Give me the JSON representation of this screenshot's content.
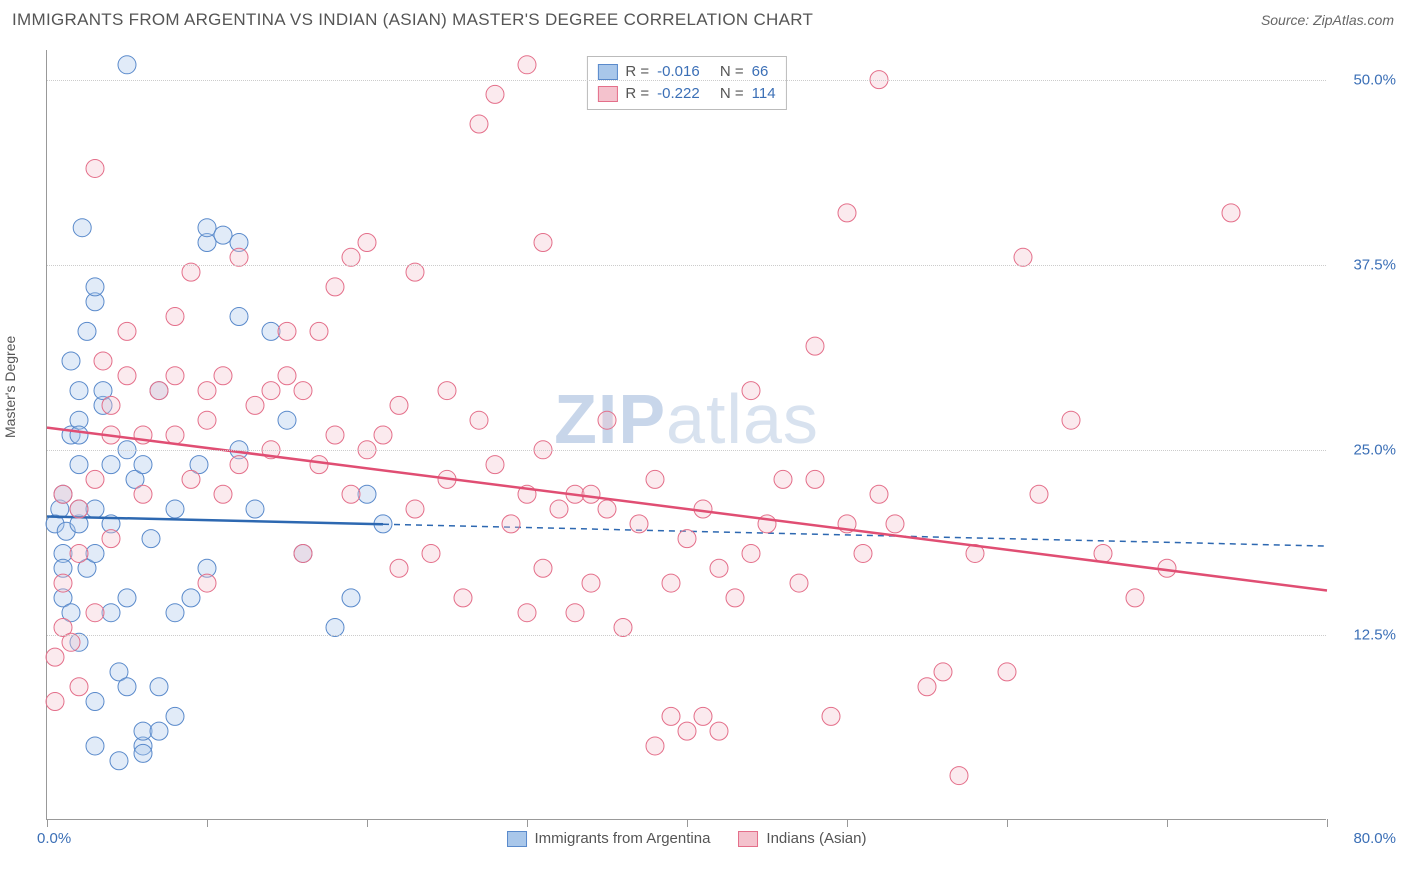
{
  "title": "IMMIGRANTS FROM ARGENTINA VS INDIAN (ASIAN) MASTER'S DEGREE CORRELATION CHART",
  "source_label": "Source:",
  "source_value": "ZipAtlas.com",
  "y_axis_label": "Master's Degree",
  "watermark_prefix": "ZIP",
  "watermark_suffix": "atlas",
  "chart": {
    "type": "scatter",
    "xlim": [
      0,
      80
    ],
    "ylim": [
      0,
      52
    ],
    "x_tick_step": 10,
    "y_ticks": [
      12.5,
      25.0,
      37.5,
      50.0
    ],
    "y_tick_labels": [
      "12.5%",
      "25.0%",
      "37.5%",
      "50.0%"
    ],
    "x_start_label": "0.0%",
    "x_end_label": "80.0%",
    "background_color": "#ffffff",
    "grid_color": "#cccccc",
    "axis_color": "#999999",
    "point_opacity": 0.35,
    "point_radius": 9
  },
  "series": [
    {
      "name": "Immigrants from Argentina",
      "fill_color": "#a9c7ea",
      "stroke_color": "#5a8acb",
      "line_color": "#2d68b1",
      "R": "-0.016",
      "N": "66",
      "trend": {
        "y_at_x0": 20.5,
        "y_at_xmax": 18.5,
        "solid_until_x": 21
      },
      "points": [
        [
          0.5,
          20
        ],
        [
          0.8,
          21
        ],
        [
          1,
          15
        ],
        [
          1,
          18
        ],
        [
          1,
          22
        ],
        [
          1.2,
          19.5
        ],
        [
          1.5,
          14
        ],
        [
          1.5,
          26
        ],
        [
          1.5,
          31
        ],
        [
          2,
          12
        ],
        [
          2,
          20
        ],
        [
          2,
          21
        ],
        [
          2,
          24
        ],
        [
          2,
          27
        ],
        [
          2,
          29
        ],
        [
          2.2,
          40
        ],
        [
          2.5,
          17
        ],
        [
          2.5,
          33
        ],
        [
          3,
          8
        ],
        [
          3,
          18
        ],
        [
          3,
          21
        ],
        [
          3,
          35
        ],
        [
          3,
          36
        ],
        [
          3.5,
          28
        ],
        [
          3.5,
          29
        ],
        [
          4,
          14
        ],
        [
          4,
          20
        ],
        [
          4,
          24
        ],
        [
          4.5,
          10
        ],
        [
          5,
          9
        ],
        [
          5,
          15
        ],
        [
          5,
          25
        ],
        [
          5,
          51
        ],
        [
          5.5,
          23
        ],
        [
          6,
          5
        ],
        [
          6,
          6
        ],
        [
          6,
          24
        ],
        [
          6.5,
          19
        ],
        [
          7,
          9
        ],
        [
          7,
          29
        ],
        [
          8,
          7
        ],
        [
          8,
          14
        ],
        [
          8,
          21
        ],
        [
          9,
          15
        ],
        [
          9.5,
          24
        ],
        [
          10,
          17
        ],
        [
          10,
          39
        ],
        [
          10,
          40
        ],
        [
          11,
          39.5
        ],
        [
          12,
          39
        ],
        [
          12,
          34
        ],
        [
          12,
          25
        ],
        [
          13,
          21
        ],
        [
          14,
          33
        ],
        [
          15,
          27
        ],
        [
          16,
          18
        ],
        [
          18,
          13
        ],
        [
          19,
          15
        ],
        [
          20,
          22
        ],
        [
          21,
          20
        ],
        [
          4.5,
          4
        ],
        [
          6,
          4.5
        ],
        [
          7,
          6
        ],
        [
          3,
          5
        ],
        [
          1,
          17
        ],
        [
          2,
          26
        ]
      ]
    },
    {
      "name": "Indians (Asian)",
      "fill_color": "#f4c2cd",
      "stroke_color": "#e46f8a",
      "line_color": "#e04e73",
      "R": "-0.222",
      "N": "114",
      "trend": {
        "y_at_x0": 26.5,
        "y_at_xmax": 15.5,
        "solid_until_x": 80
      },
      "points": [
        [
          0.5,
          11
        ],
        [
          1,
          13
        ],
        [
          1,
          16
        ],
        [
          1,
          22
        ],
        [
          2,
          18
        ],
        [
          2,
          21
        ],
        [
          3,
          44
        ],
        [
          3,
          23
        ],
        [
          3.5,
          31
        ],
        [
          4,
          26
        ],
        [
          4,
          28
        ],
        [
          5,
          30
        ],
        [
          5,
          33
        ],
        [
          6,
          22
        ],
        [
          6,
          26
        ],
        [
          7,
          29
        ],
        [
          8,
          26
        ],
        [
          8,
          30
        ],
        [
          8,
          34
        ],
        [
          9,
          23
        ],
        [
          9,
          37
        ],
        [
          10,
          16
        ],
        [
          10,
          27
        ],
        [
          10,
          29
        ],
        [
          11,
          22
        ],
        [
          11,
          30
        ],
        [
          12,
          24
        ],
        [
          12,
          38
        ],
        [
          13,
          28
        ],
        [
          14,
          29
        ],
        [
          14,
          25
        ],
        [
          15,
          30
        ],
        [
          15,
          33
        ],
        [
          16,
          18
        ],
        [
          16,
          29
        ],
        [
          17,
          24
        ],
        [
          17,
          33
        ],
        [
          18,
          26
        ],
        [
          18,
          36
        ],
        [
          19,
          22
        ],
        [
          19,
          38
        ],
        [
          20,
          25
        ],
        [
          20,
          39
        ],
        [
          21,
          26
        ],
        [
          22,
          17
        ],
        [
          22,
          28
        ],
        [
          23,
          21
        ],
        [
          23,
          37
        ],
        [
          24,
          18
        ],
        [
          25,
          23
        ],
        [
          25,
          29
        ],
        [
          26,
          15
        ],
        [
          27,
          47
        ],
        [
          27,
          27
        ],
        [
          28,
          24
        ],
        [
          28,
          49
        ],
        [
          29,
          20
        ],
        [
          30,
          14
        ],
        [
          30,
          22
        ],
        [
          30,
          51
        ],
        [
          31,
          17
        ],
        [
          31,
          25
        ],
        [
          31,
          39
        ],
        [
          32,
          21
        ],
        [
          33,
          14
        ],
        [
          33,
          22
        ],
        [
          34,
          16
        ],
        [
          34,
          22
        ],
        [
          35,
          21
        ],
        [
          35,
          27
        ],
        [
          36,
          13
        ],
        [
          37,
          20
        ],
        [
          38,
          23
        ],
        [
          38,
          5
        ],
        [
          39,
          7
        ],
        [
          39,
          16
        ],
        [
          40,
          6
        ],
        [
          40,
          19
        ],
        [
          41,
          7
        ],
        [
          41,
          21
        ],
        [
          42,
          6
        ],
        [
          42,
          17
        ],
        [
          43,
          15
        ],
        [
          44,
          18
        ],
        [
          44,
          29
        ],
        [
          45,
          20
        ],
        [
          46,
          23
        ],
        [
          47,
          16
        ],
        [
          48,
          23
        ],
        [
          48,
          32
        ],
        [
          49,
          7
        ],
        [
          50,
          20
        ],
        [
          50,
          41
        ],
        [
          51,
          18
        ],
        [
          52,
          22
        ],
        [
          52,
          50
        ],
        [
          53,
          20
        ],
        [
          55,
          9
        ],
        [
          56,
          10
        ],
        [
          57,
          3
        ],
        [
          58,
          18
        ],
        [
          60,
          10
        ],
        [
          61,
          38
        ],
        [
          62,
          22
        ],
        [
          64,
          27
        ],
        [
          66,
          18
        ],
        [
          68,
          15
        ],
        [
          70,
          17
        ],
        [
          74,
          41
        ],
        [
          0.5,
          8
        ],
        [
          1.5,
          12
        ],
        [
          2,
          9
        ],
        [
          3,
          14
        ],
        [
          4,
          19
        ]
      ]
    }
  ],
  "legend_top": {
    "r_label": "R =",
    "n_label": "N ="
  },
  "legend_bottom": {
    "items": [
      "Immigrants from Argentina",
      "Indians (Asian)"
    ]
  }
}
